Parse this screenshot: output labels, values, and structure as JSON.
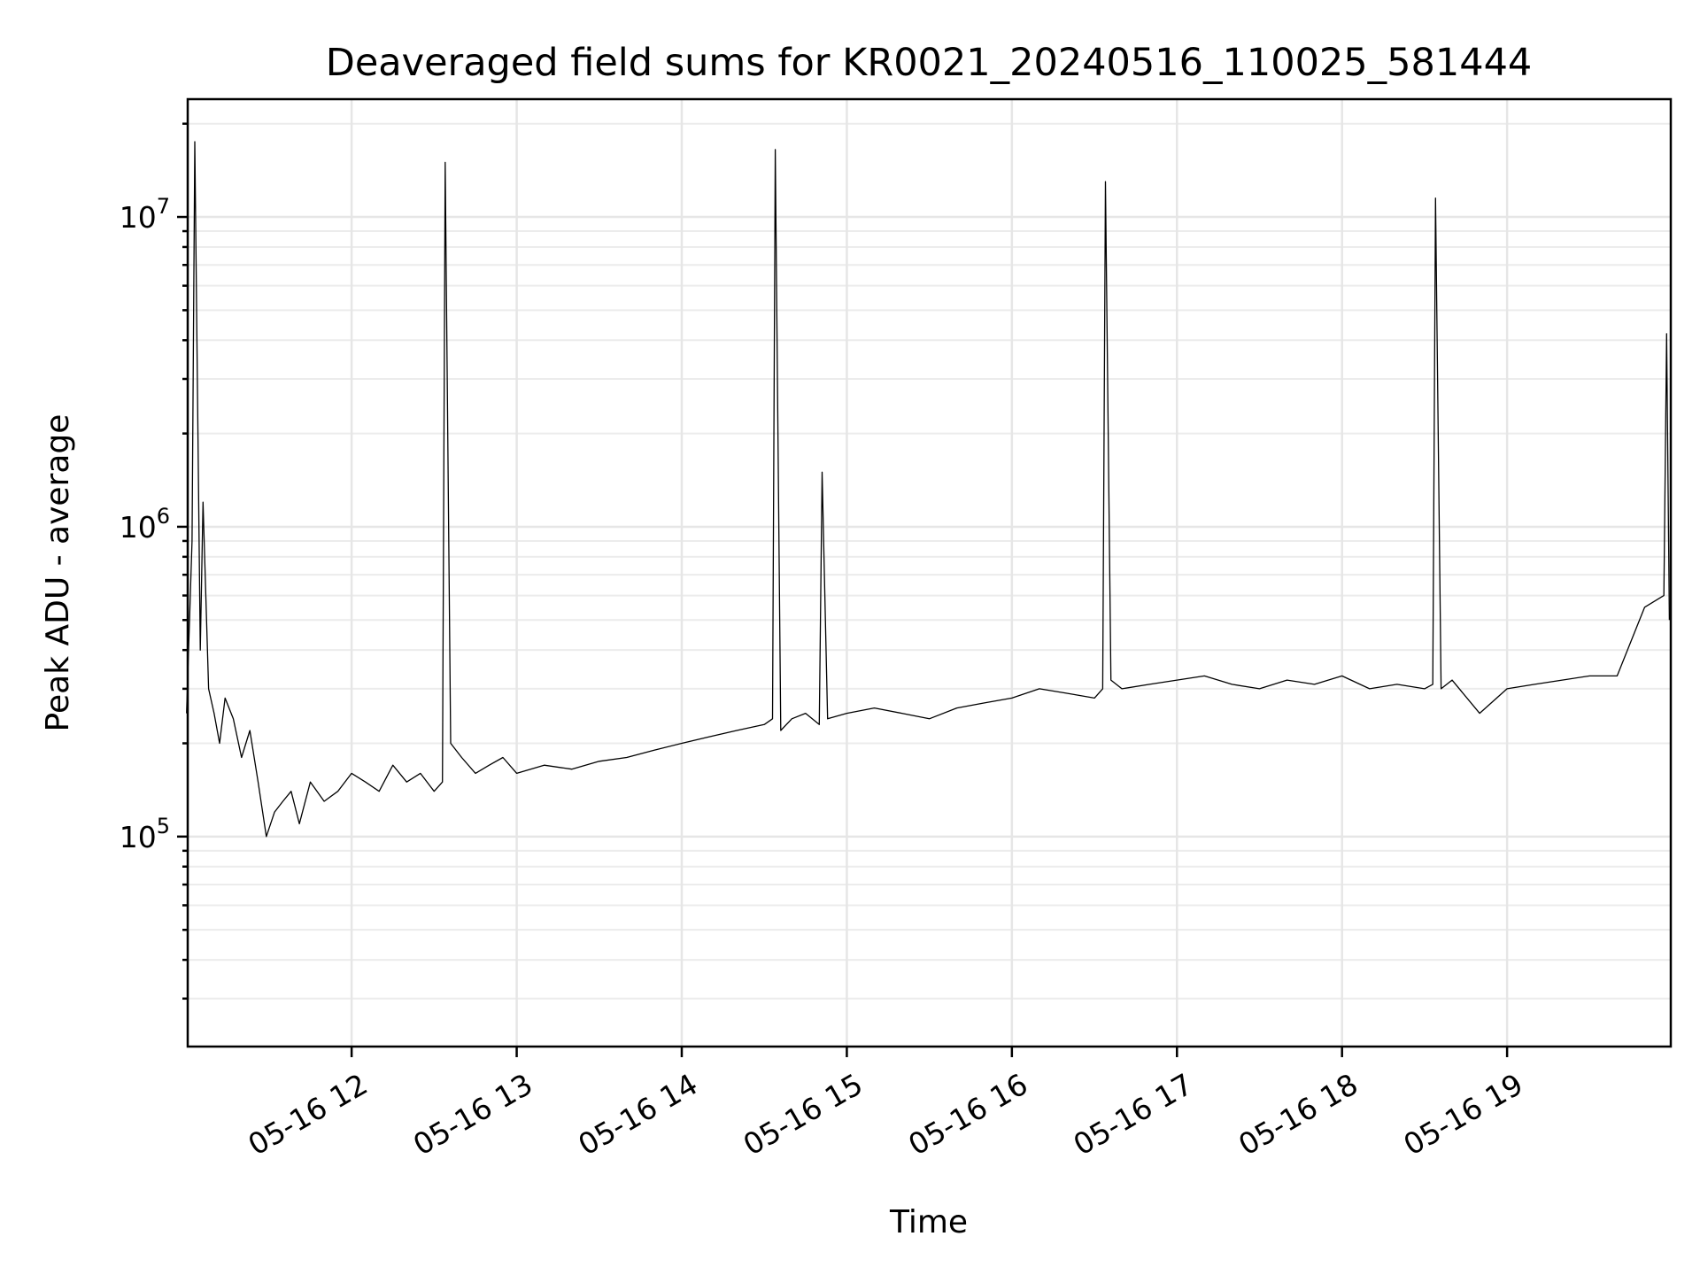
{
  "chart_data": {
    "type": "line",
    "title": "Deaveraged field sums for KR0021_20240516_110025_581444",
    "xlabel": "Time",
    "ylabel": "Peak ADU - average",
    "y_scale": "log",
    "ylim": [
      21000,
      24000000
    ],
    "xlim": [
      "2024-05-16 11:00:25",
      "2024-05-16 19:59:30"
    ],
    "grid": true,
    "grid_minor": true,
    "legend": "none",
    "line_color": "#000000",
    "x_ticks": [
      {
        "value": "2024-05-16 12:00",
        "label": "05-16 12"
      },
      {
        "value": "2024-05-16 13:00",
        "label": "05-16 13"
      },
      {
        "value": "2024-05-16 14:00",
        "label": "05-16 14"
      },
      {
        "value": "2024-05-16 15:00",
        "label": "05-16 15"
      },
      {
        "value": "2024-05-16 16:00",
        "label": "05-16 16"
      },
      {
        "value": "2024-05-16 17:00",
        "label": "05-16 17"
      },
      {
        "value": "2024-05-16 18:00",
        "label": "05-16 18"
      },
      {
        "value": "2024-05-16 19:00",
        "label": "05-16 19"
      }
    ],
    "y_ticks": [
      {
        "value": 100000,
        "mantissa": "10",
        "exponent": "5"
      },
      {
        "value": 1000000,
        "mantissa": "10",
        "exponent": "6"
      },
      {
        "value": 10000000,
        "mantissa": "10",
        "exponent": "7"
      }
    ],
    "series": [
      {
        "name": "",
        "x": [
          "2024-05-16 11:00",
          "2024-05-16 11:02",
          "2024-05-16 11:03",
          "2024-05-16 11:05",
          "2024-05-16 11:06",
          "2024-05-16 11:08",
          "2024-05-16 11:10",
          "2024-05-16 11:12",
          "2024-05-16 11:14",
          "2024-05-16 11:17",
          "2024-05-16 11:20",
          "2024-05-16 11:23",
          "2024-05-16 11:26",
          "2024-05-16 11:29",
          "2024-05-16 11:32",
          "2024-05-16 11:35",
          "2024-05-16 11:38",
          "2024-05-16 11:41",
          "2024-05-16 11:45",
          "2024-05-16 11:50",
          "2024-05-16 11:55",
          "2024-05-16 12:00",
          "2024-05-16 12:05",
          "2024-05-16 12:10",
          "2024-05-16 12:15",
          "2024-05-16 12:20",
          "2024-05-16 12:25",
          "2024-05-16 12:30",
          "2024-05-16 12:33",
          "2024-05-16 12:34",
          "2024-05-16 12:36",
          "2024-05-16 12:40",
          "2024-05-16 12:45",
          "2024-05-16 12:50",
          "2024-05-16 12:55",
          "2024-05-16 13:00",
          "2024-05-16 13:10",
          "2024-05-16 13:20",
          "2024-05-16 13:30",
          "2024-05-16 13:40",
          "2024-05-16 13:50",
          "2024-05-16 14:00",
          "2024-05-16 14:10",
          "2024-05-16 14:20",
          "2024-05-16 14:30",
          "2024-05-16 14:33",
          "2024-05-16 14:34",
          "2024-05-16 14:36",
          "2024-05-16 14:40",
          "2024-05-16 14:45",
          "2024-05-16 14:50",
          "2024-05-16 14:51",
          "2024-05-16 14:53",
          "2024-05-16 15:00",
          "2024-05-16 15:10",
          "2024-05-16 15:20",
          "2024-05-16 15:30",
          "2024-05-16 15:40",
          "2024-05-16 15:50",
          "2024-05-16 16:00",
          "2024-05-16 16:10",
          "2024-05-16 16:20",
          "2024-05-16 16:30",
          "2024-05-16 16:33",
          "2024-05-16 16:34",
          "2024-05-16 16:36",
          "2024-05-16 16:40",
          "2024-05-16 16:50",
          "2024-05-16 17:00",
          "2024-05-16 17:10",
          "2024-05-16 17:20",
          "2024-05-16 17:30",
          "2024-05-16 17:40",
          "2024-05-16 17:50",
          "2024-05-16 18:00",
          "2024-05-16 18:10",
          "2024-05-16 18:20",
          "2024-05-16 18:30",
          "2024-05-16 18:33",
          "2024-05-16 18:34",
          "2024-05-16 18:36",
          "2024-05-16 18:40",
          "2024-05-16 18:50",
          "2024-05-16 19:00",
          "2024-05-16 19:10",
          "2024-05-16 19:20",
          "2024-05-16 19:30",
          "2024-05-16 19:40",
          "2024-05-16 19:50",
          "2024-05-16 19:57",
          "2024-05-16 19:58",
          "2024-05-16 19:59"
        ],
        "y": [
          250000,
          900000,
          17500000,
          400000,
          1200000,
          300000,
          250000,
          200000,
          280000,
          240000,
          180000,
          220000,
          150000,
          100000,
          120000,
          130000,
          140000,
          110000,
          150000,
          130000,
          140000,
          160000,
          150000,
          140000,
          170000,
          150000,
          160000,
          140000,
          150000,
          15000000,
          200000,
          180000,
          160000,
          170000,
          180000,
          160000,
          170000,
          165000,
          175000,
          180000,
          190000,
          200000,
          210000,
          220000,
          230000,
          240000,
          16500000,
          220000,
          240000,
          250000,
          230000,
          1500000,
          240000,
          250000,
          260000,
          250000,
          240000,
          260000,
          270000,
          280000,
          300000,
          290000,
          280000,
          300000,
          13000000,
          320000,
          300000,
          310000,
          320000,
          330000,
          310000,
          300000,
          320000,
          310000,
          330000,
          300000,
          310000,
          300000,
          310000,
          11500000,
          300000,
          320000,
          250000,
          300000,
          310000,
          320000,
          330000,
          330000,
          550000,
          600000,
          4200000,
          500000
        ]
      }
    ]
  }
}
